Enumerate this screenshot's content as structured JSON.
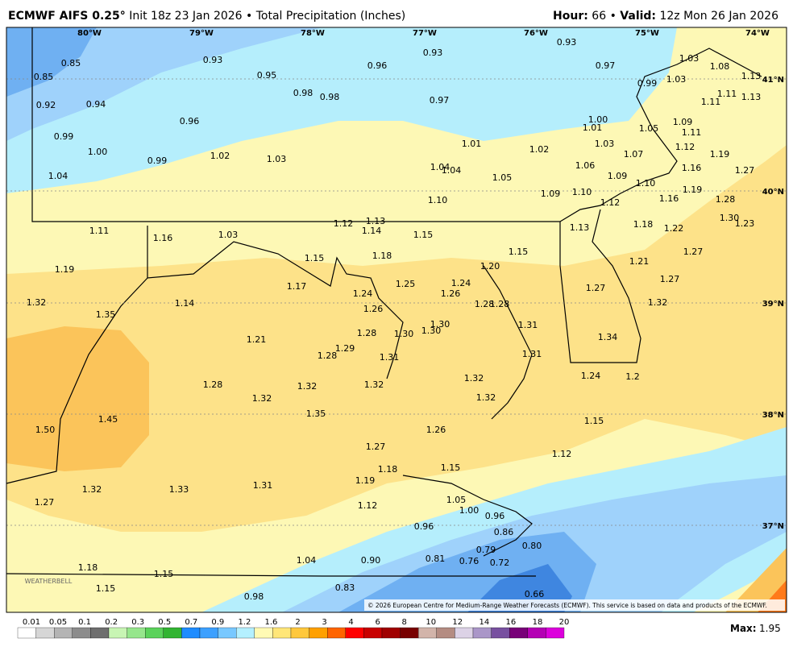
{
  "header": {
    "title": "ECMWF AIFS 0.25°",
    "subtitle": "Init 18z 23 Jan 2026 • Total Precipitation (Inches)",
    "hour_label": "Hour:",
    "hour": "66",
    "separator": "•",
    "valid_label": "Valid:",
    "valid": "12z Mon 26 Jan 2026"
  },
  "map": {
    "longitudes": [
      "80°W",
      "79°W",
      "78°W",
      "77°W",
      "76°W",
      "75°W",
      "74°W"
    ],
    "latitudes": [
      "41°N",
      "40°N",
      "39°N",
      "38°N",
      "37°N"
    ],
    "point_values": [
      "0.85",
      "0.85",
      "0.92",
      "0.94",
      "0.93",
      "0.95",
      "0.98",
      "0.98",
      "0.96",
      "0.93",
      "0.97",
      "0.93",
      "0.97",
      "0.99",
      "1.03",
      "1.08",
      "1.03",
      "1.13",
      "1.11",
      "1.11",
      "1.13",
      "0.96",
      "0.99",
      "1.00",
      "0.99",
      "1.02",
      "1.03",
      "1.01",
      "1.02",
      "1.00",
      "1.01",
      "1.05",
      "1.09",
      "1.11",
      "1.03",
      "1.12",
      "1.19",
      "1.06",
      "1.07",
      "1.04",
      "1.04",
      "1.04",
      "1.05",
      "1.09",
      "1.16",
      "1.27",
      "1.10",
      "1.09",
      "1.10",
      "1.12",
      "1.16",
      "1.19",
      "1.28",
      "1.10",
      "1.30",
      "1.23",
      "1.18",
      "1.22",
      "1.13",
      "1.12",
      "1.13",
      "1.14",
      "1.15",
      "1.11",
      "1.16",
      "1.03",
      "1.15",
      "1.18",
      "1.20",
      "1.15",
      "1.27",
      "1.21",
      "1.19",
      "1.17",
      "1.25",
      "1.24",
      "1.26",
      "1.24",
      "1.27",
      "1.27",
      "1.32",
      "1.14",
      "1.26",
      "1.28",
      "1.28",
      "1.32",
      "1.35",
      "1.30",
      "1.31",
      "1.30",
      "1.30",
      "1.28",
      "1.34",
      "1.21",
      "1.29",
      "1.28",
      "1.31",
      "1.31",
      "1.24",
      "1.32",
      "1.2",
      "1.28",
      "1.32",
      "1.32",
      "1.32",
      "1.32",
      "1.45",
      "1.35",
      "1.15",
      "1.50",
      "1.26",
      "1.27",
      "1.12",
      "1.18",
      "1.15",
      "1.19",
      "1.31",
      "1.32",
      "1.33",
      "1.05",
      "1.27",
      "1.12",
      "1.00",
      "0.96",
      "0.96",
      "0.86",
      "0.79",
      "0.80",
      "1.04",
      "0.90",
      "0.81",
      "0.76",
      "0.72",
      "1.18",
      "1.15",
      "1.15",
      "0.83",
      "0.98",
      "0.66"
    ],
    "logo": "WEATHERBELL",
    "copyright": "© 2026 European Centre for Medium-Range Weather Forecasts (ECMWF). This service is based on data and products of the ECMWF."
  },
  "colorbar": {
    "labels": [
      "0.01",
      "0.05",
      "0.1",
      "0.2",
      "0.3",
      "0.5",
      "0.7",
      "0.9",
      "1.2",
      "1.6",
      "2",
      "3",
      "4",
      "6",
      "8",
      "10",
      "12",
      "14",
      "16",
      "18",
      "20"
    ],
    "colors": [
      "#ffffff",
      "#d6d6d6",
      "#b4b4b4",
      "#8c8c8c",
      "#6e6e6e",
      "#c8f5b4",
      "#96e68c",
      "#5ad25a",
      "#32b432",
      "#1e8cff",
      "#3ca0ff",
      "#78c8ff",
      "#b4f0ff",
      "#fffab4",
      "#ffe678",
      "#ffc83c",
      "#ffa000",
      "#ff6400",
      "#ff0000",
      "#c80000",
      "#a00000",
      "#780000",
      "#d2b4aa",
      "#b48c82",
      "#dcd2e6",
      "#aa96c8",
      "#7850a0",
      "#780078",
      "#b400b4",
      "#dc00dc"
    ]
  },
  "footer": {
    "max_label": "Max:",
    "max": "1.95"
  }
}
